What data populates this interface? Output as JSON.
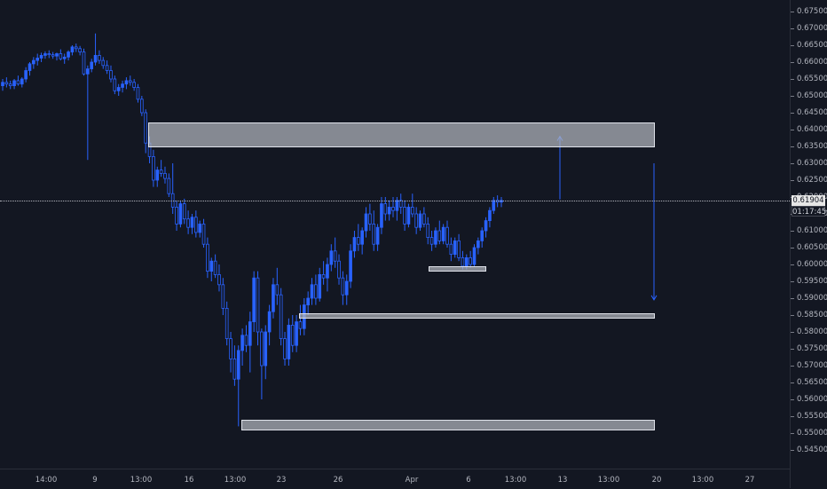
{
  "chart_data": {
    "type": "candlestick",
    "ylim": [
      0.5475,
      0.6755
    ],
    "y_ticks": [
      "0.67500",
      "0.67000",
      "0.66500",
      "0.66000",
      "0.65500",
      "0.65000",
      "0.64500",
      "0.64000",
      "0.63500",
      "0.63000",
      "0.62500",
      "0.62000",
      "0.61500",
      "0.61000",
      "0.60500",
      "0.60000",
      "0.59500",
      "0.59000",
      "0.58500",
      "0.58000",
      "0.57500",
      "0.57000",
      "0.56500",
      "0.56000",
      "0.55500",
      "0.55000",
      "0.54500"
    ],
    "x_ticks": [
      "14:00",
      "9",
      "13:00",
      "16",
      "13:00",
      "23",
      "26",
      "Apr",
      "6",
      "13:00",
      "13",
      "13:00",
      "20",
      "13:00",
      "27"
    ],
    "current_price": "0.61904",
    "countdown": "01:17:45",
    "up_color": "#2962ff",
    "down_color": "#2962ff",
    "zones": [
      {
        "name": "supply-zone",
        "from": 0.6348,
        "to": 0.6422
      },
      {
        "name": "small-demand-zone",
        "from": 0.5987,
        "to": 0.5995
      },
      {
        "name": "mid-zone",
        "from": 0.584,
        "to": 0.5854
      },
      {
        "name": "low-demand-zone",
        "from": 0.5507,
        "to": 0.554
      }
    ],
    "projections": [
      {
        "name": "up-arrow",
        "from": 0.6193,
        "to": 0.638
      },
      {
        "name": "down-arrow",
        "from": 0.63,
        "to": 0.5895
      }
    ],
    "candles": [
      [
        0.653,
        0.655,
        0.6515,
        0.654
      ],
      [
        0.654,
        0.6555,
        0.6525,
        0.6535
      ],
      [
        0.6535,
        0.6545,
        0.652,
        0.653
      ],
      [
        0.653,
        0.655,
        0.652,
        0.6545
      ],
      [
        0.6545,
        0.656,
        0.653,
        0.6535
      ],
      [
        0.6535,
        0.6555,
        0.6525,
        0.655
      ],
      [
        0.655,
        0.6585,
        0.654,
        0.6575
      ],
      [
        0.6575,
        0.66,
        0.656,
        0.6595
      ],
      [
        0.6595,
        0.6615,
        0.658,
        0.6605
      ],
      [
        0.6605,
        0.6625,
        0.659,
        0.6612
      ],
      [
        0.6612,
        0.6628,
        0.66,
        0.662
      ],
      [
        0.662,
        0.6632,
        0.661,
        0.6625
      ],
      [
        0.6625,
        0.6635,
        0.6612,
        0.6622
      ],
      [
        0.6622,
        0.663,
        0.661,
        0.6618
      ],
      [
        0.6618,
        0.6628,
        0.6605,
        0.6625
      ],
      [
        0.6625,
        0.6638,
        0.6605,
        0.661
      ],
      [
        0.661,
        0.6625,
        0.6595,
        0.6615
      ],
      [
        0.6615,
        0.6635,
        0.6605,
        0.663
      ],
      [
        0.663,
        0.665,
        0.662,
        0.6645
      ],
      [
        0.6645,
        0.6655,
        0.663,
        0.664
      ],
      [
        0.664,
        0.6648,
        0.662,
        0.663
      ],
      [
        0.663,
        0.664,
        0.656,
        0.6565
      ],
      [
        0.6565,
        0.659,
        0.631,
        0.658
      ],
      [
        0.658,
        0.661,
        0.657,
        0.66
      ],
      [
        0.66,
        0.6685,
        0.659,
        0.662
      ],
      [
        0.662,
        0.6635,
        0.6595,
        0.6605
      ],
      [
        0.6605,
        0.6615,
        0.658,
        0.659
      ],
      [
        0.659,
        0.6605,
        0.6565,
        0.6575
      ],
      [
        0.6575,
        0.659,
        0.654,
        0.655
      ],
      [
        0.655,
        0.656,
        0.6505,
        0.6515
      ],
      [
        0.6515,
        0.6535,
        0.65,
        0.6525
      ],
      [
        0.6525,
        0.6545,
        0.651,
        0.6535
      ],
      [
        0.6535,
        0.6555,
        0.652,
        0.6545
      ],
      [
        0.6545,
        0.656,
        0.653,
        0.654
      ],
      [
        0.654,
        0.655,
        0.6515,
        0.6525
      ],
      [
        0.6525,
        0.6535,
        0.648,
        0.649
      ],
      [
        0.649,
        0.65,
        0.644,
        0.645
      ],
      [
        0.645,
        0.646,
        0.633,
        0.636
      ],
      [
        0.636,
        0.638,
        0.63,
        0.632
      ],
      [
        0.632,
        0.634,
        0.623,
        0.625
      ],
      [
        0.625,
        0.629,
        0.623,
        0.628
      ],
      [
        0.628,
        0.631,
        0.626,
        0.627
      ],
      [
        0.627,
        0.629,
        0.624,
        0.6255
      ],
      [
        0.6255,
        0.627,
        0.62,
        0.621
      ],
      [
        0.621,
        0.63,
        0.615,
        0.617
      ],
      [
        0.617,
        0.619,
        0.61,
        0.612
      ],
      [
        0.612,
        0.619,
        0.611,
        0.618
      ],
      [
        0.618,
        0.6195,
        0.612,
        0.6135
      ],
      [
        0.6135,
        0.616,
        0.609,
        0.611
      ],
      [
        0.611,
        0.615,
        0.609,
        0.614
      ],
      [
        0.614,
        0.616,
        0.608,
        0.6095
      ],
      [
        0.6095,
        0.613,
        0.608,
        0.612
      ],
      [
        0.612,
        0.6135,
        0.605,
        0.606
      ],
      [
        0.606,
        0.608,
        0.596,
        0.598
      ],
      [
        0.598,
        0.602,
        0.595,
        0.601
      ],
      [
        0.601,
        0.603,
        0.596,
        0.597
      ],
      [
        0.597,
        0.6,
        0.592,
        0.594
      ],
      [
        0.594,
        0.596,
        0.585,
        0.587
      ],
      [
        0.587,
        0.589,
        0.576,
        0.578
      ],
      [
        0.578,
        0.58,
        0.568,
        0.572
      ],
      [
        0.572,
        0.576,
        0.564,
        0.566
      ],
      [
        0.566,
        0.576,
        0.552,
        0.5745
      ],
      [
        0.5745,
        0.581,
        0.57,
        0.579
      ],
      [
        0.579,
        0.582,
        0.574,
        0.576
      ],
      [
        0.576,
        0.586,
        0.568,
        0.583
      ],
      [
        0.583,
        0.598,
        0.58,
        0.596
      ],
      [
        0.596,
        0.598,
        0.576,
        0.58
      ],
      [
        0.58,
        0.581,
        0.56,
        0.57
      ],
      [
        0.57,
        0.582,
        0.566,
        0.58
      ],
      [
        0.58,
        0.588,
        0.576,
        0.586
      ],
      [
        0.586,
        0.596,
        0.584,
        0.594
      ],
      [
        0.594,
        0.599,
        0.588,
        0.591
      ],
      [
        0.591,
        0.593,
        0.576,
        0.578
      ],
      [
        0.578,
        0.58,
        0.57,
        0.572
      ],
      [
        0.572,
        0.584,
        0.57,
        0.582
      ],
      [
        0.582,
        0.585,
        0.574,
        0.576
      ],
      [
        0.576,
        0.585,
        0.574,
        0.583
      ],
      [
        0.583,
        0.588,
        0.579,
        0.581
      ],
      [
        0.581,
        0.59,
        0.579,
        0.588
      ],
      [
        0.588,
        0.592,
        0.585,
        0.59
      ],
      [
        0.59,
        0.596,
        0.588,
        0.594
      ],
      [
        0.594,
        0.597,
        0.588,
        0.59
      ],
      [
        0.59,
        0.599,
        0.589,
        0.597
      ],
      [
        0.597,
        0.601,
        0.594,
        0.596
      ],
      [
        0.596,
        0.602,
        0.592,
        0.6
      ],
      [
        0.6,
        0.606,
        0.598,
        0.604
      ],
      [
        0.604,
        0.608,
        0.599,
        0.601
      ],
      [
        0.601,
        0.603,
        0.594,
        0.596
      ],
      [
        0.596,
        0.598,
        0.588,
        0.591
      ],
      [
        0.591,
        0.597,
        0.588,
        0.595
      ],
      [
        0.595,
        0.606,
        0.593,
        0.604
      ],
      [
        0.604,
        0.61,
        0.602,
        0.608
      ],
      [
        0.608,
        0.612,
        0.604,
        0.606
      ],
      [
        0.606,
        0.611,
        0.603,
        0.61
      ],
      [
        0.61,
        0.617,
        0.608,
        0.615
      ],
      [
        0.615,
        0.618,
        0.61,
        0.612
      ],
      [
        0.612,
        0.616,
        0.604,
        0.606
      ],
      [
        0.606,
        0.612,
        0.604,
        0.611
      ],
      [
        0.611,
        0.62,
        0.609,
        0.618
      ],
      [
        0.618,
        0.62,
        0.613,
        0.615
      ],
      [
        0.615,
        0.619,
        0.613,
        0.617
      ],
      [
        0.617,
        0.62,
        0.614,
        0.616
      ],
      [
        0.616,
        0.62,
        0.613,
        0.619
      ],
      [
        0.619,
        0.621,
        0.615,
        0.617
      ],
      [
        0.617,
        0.619,
        0.61,
        0.612
      ],
      [
        0.612,
        0.618,
        0.611,
        0.617
      ],
      [
        0.617,
        0.621,
        0.614,
        0.615
      ],
      [
        0.615,
        0.617,
        0.609,
        0.611
      ],
      [
        0.611,
        0.616,
        0.61,
        0.615
      ],
      [
        0.615,
        0.617,
        0.611,
        0.612
      ],
      [
        0.612,
        0.614,
        0.606,
        0.608
      ],
      [
        0.608,
        0.61,
        0.604,
        0.606
      ],
      [
        0.606,
        0.611,
        0.605,
        0.61
      ],
      [
        0.61,
        0.613,
        0.606,
        0.607
      ],
      [
        0.607,
        0.612,
        0.606,
        0.611
      ],
      [
        0.611,
        0.613,
        0.605,
        0.606
      ],
      [
        0.606,
        0.608,
        0.601,
        0.603
      ],
      [
        0.603,
        0.608,
        0.602,
        0.607
      ],
      [
        0.607,
        0.609,
        0.601,
        0.602
      ],
      [
        0.602,
        0.604,
        0.5985,
        0.5995
      ],
      [
        0.5995,
        0.603,
        0.5985,
        0.602
      ],
      [
        0.602,
        0.604,
        0.599,
        0.6
      ],
      [
        0.6,
        0.606,
        0.5995,
        0.605
      ],
      [
        0.605,
        0.608,
        0.603,
        0.607
      ],
      [
        0.607,
        0.611,
        0.605,
        0.61
      ],
      [
        0.61,
        0.614,
        0.608,
        0.613
      ],
      [
        0.613,
        0.617,
        0.611,
        0.616
      ],
      [
        0.616,
        0.62,
        0.615,
        0.619
      ],
      [
        0.619,
        0.6205,
        0.617,
        0.6185
      ],
      [
        0.6185,
        0.62,
        0.617,
        0.619
      ]
    ]
  }
}
